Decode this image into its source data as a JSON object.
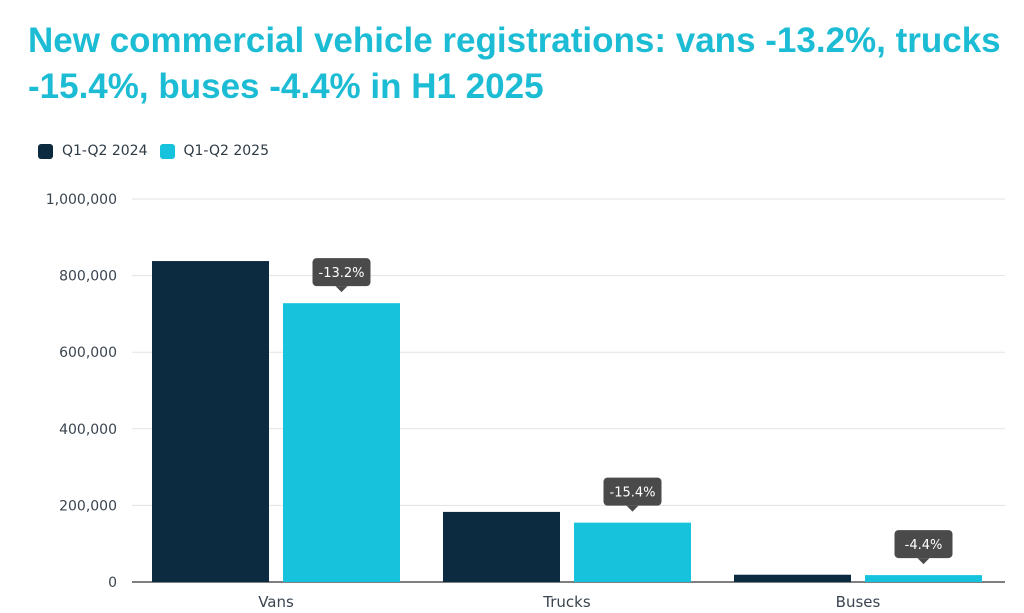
{
  "chart_data": {
    "type": "bar",
    "title": "New commercial vehicle registrations: vans -13.2%, trucks -15.4%, buses -4.4% in H1 2025",
    "xlabel": "",
    "ylabel": "",
    "categories": [
      "Vans",
      "Trucks",
      "Buses"
    ],
    "series": [
      {
        "name": "Q1-Q2 2024",
        "color": "#0c2a40",
        "values": [
          838000,
          183000,
          19000
        ]
      },
      {
        "name": "Q1-Q2 2025",
        "color": "#17c3dc",
        "values": [
          728000,
          155000,
          18000
        ]
      }
    ],
    "annotations": [
      "-13.2%",
      "-15.4%",
      "-4.4%"
    ],
    "annotation_color": "#4a4a4a",
    "ylim": [
      0,
      1000000
    ],
    "yticks": [
      0,
      200000,
      400000,
      600000,
      800000,
      1000000
    ],
    "ytick_labels": [
      "0",
      "200,000",
      "400,000",
      "600,000",
      "800,000",
      "1,000,000"
    ],
    "grid": true,
    "legend_position": "top-left"
  }
}
